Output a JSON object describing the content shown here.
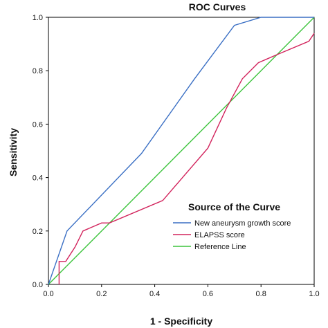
{
  "chart_data": {
    "type": "line",
    "title": "ROC Curves",
    "xlabel": "1 - Specificity",
    "ylabel": "Sensitivity",
    "xlim": [
      0,
      1
    ],
    "ylim": [
      0,
      1
    ],
    "x_ticks": [
      "0.0",
      "0.2",
      "0.4",
      "0.6",
      "0.8",
      "1.0"
    ],
    "y_ticks": [
      "0.0",
      "0.2",
      "0.4",
      "0.6",
      "0.8",
      "1.0"
    ],
    "grid": false,
    "legend": {
      "title": "Source of the Curve",
      "placement": "bottom-right"
    },
    "series": [
      {
        "name": "New aneurysm growth score",
        "color": "#3a6fc4",
        "points": [
          [
            0.0,
            0.0
          ],
          [
            0.07,
            0.2
          ],
          [
            0.35,
            0.49
          ],
          [
            0.55,
            0.77
          ],
          [
            0.7,
            0.97
          ],
          [
            0.8,
            1.0
          ],
          [
            1.0,
            1.0
          ]
        ]
      },
      {
        "name": "ELAPSS score",
        "color": "#d2235c",
        "points": [
          [
            0.04,
            0.0
          ],
          [
            0.04,
            0.086
          ],
          [
            0.065,
            0.086
          ],
          [
            0.1,
            0.14
          ],
          [
            0.13,
            0.2
          ],
          [
            0.2,
            0.23
          ],
          [
            0.23,
            0.23
          ],
          [
            0.43,
            0.314
          ],
          [
            0.6,
            0.51
          ],
          [
            0.67,
            0.66
          ],
          [
            0.73,
            0.77
          ],
          [
            0.79,
            0.83
          ],
          [
            0.86,
            0.86
          ],
          [
            0.98,
            0.91
          ],
          [
            1.0,
            0.94
          ]
        ]
      },
      {
        "name": "Reference Line",
        "color": "#3cc43c",
        "points": [
          [
            0.0,
            0.0
          ],
          [
            1.0,
            1.0
          ]
        ]
      }
    ]
  }
}
